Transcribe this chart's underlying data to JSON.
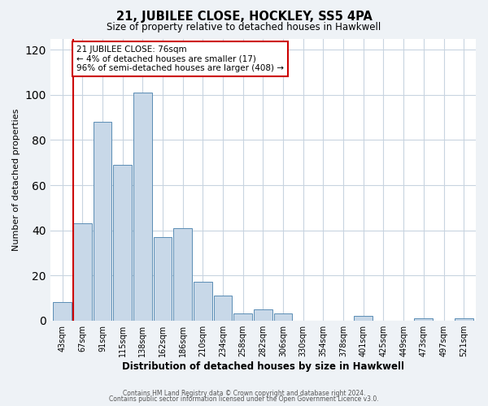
{
  "title": "21, JUBILEE CLOSE, HOCKLEY, SS5 4PA",
  "subtitle": "Size of property relative to detached houses in Hawkwell",
  "xlabel": "Distribution of detached houses by size in Hawkwell",
  "ylabel": "Number of detached properties",
  "bin_labels": [
    "43sqm",
    "67sqm",
    "91sqm",
    "115sqm",
    "138sqm",
    "162sqm",
    "186sqm",
    "210sqm",
    "234sqm",
    "258sqm",
    "282sqm",
    "306sqm",
    "330sqm",
    "354sqm",
    "378sqm",
    "401sqm",
    "425sqm",
    "449sqm",
    "473sqm",
    "497sqm",
    "521sqm"
  ],
  "bar_heights": [
    8,
    43,
    88,
    69,
    101,
    37,
    41,
    17,
    11,
    3,
    5,
    3,
    0,
    0,
    0,
    2,
    0,
    0,
    1,
    0,
    1
  ],
  "bar_color": "#c8d8e8",
  "bar_edge_color": "#5a8db5",
  "vline_x_index": 1.5,
  "vline_color": "#cc0000",
  "ylim": [
    0,
    125
  ],
  "yticks": [
    0,
    20,
    40,
    60,
    80,
    100,
    120
  ],
  "annotation_text": "21 JUBILEE CLOSE: 76sqm\n← 4% of detached houses are smaller (17)\n96% of semi-detached houses are larger (408) →",
  "annotation_box_color": "#cc0000",
  "footer_line1": "Contains HM Land Registry data © Crown copyright and database right 2024.",
  "footer_line2": "Contains public sector information licensed under the Open Government Licence v3.0.",
  "bg_color": "#eef2f6",
  "plot_bg_color": "#ffffff",
  "grid_color": "#c8d4e0"
}
